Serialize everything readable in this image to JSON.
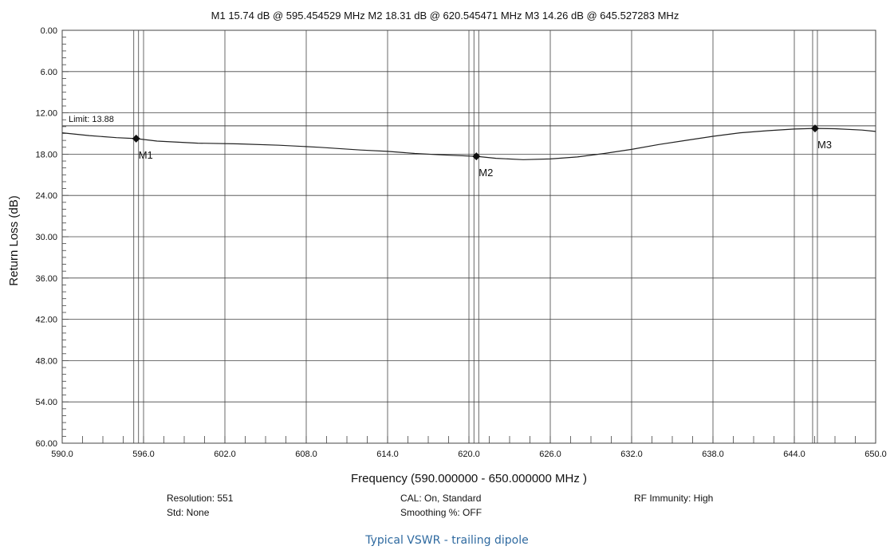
{
  "header": {
    "markers_line": "M1  15.74 dB @ 595.454529 MHz     M2  18.31 dB @ 620.545471 MHz   M3  14.26 dB @ 645.527283 MHz"
  },
  "chart_data": {
    "type": "line",
    "xlabel": "Frequency (590.000000 - 650.000000 MHz )",
    "ylabel": "Return Loss (dB)",
    "xlim": [
      590,
      650
    ],
    "ylim": [
      0,
      60
    ],
    "y_inverted": true,
    "grid": true,
    "x_ticks": [
      "590.0",
      "596.0",
      "602.0",
      "608.0",
      "614.0",
      "620.0",
      "626.0",
      "632.0",
      "638.0",
      "644.0",
      "650.0"
    ],
    "x_tick_values": [
      590,
      596,
      602,
      608,
      614,
      620,
      626,
      632,
      638,
      644,
      650
    ],
    "y_ticks": [
      "0.00",
      "6.00",
      "12.00",
      "18.00",
      "24.00",
      "30.00",
      "36.00",
      "42.00",
      "48.00",
      "54.00",
      "60.00"
    ],
    "y_tick_values": [
      0,
      6,
      12,
      18,
      24,
      30,
      36,
      42,
      48,
      54,
      60
    ],
    "limit_line": {
      "label": "Limit: 13.88",
      "value": 13.88
    },
    "series": [
      {
        "x": [
          590,
          592,
          594,
          595.45,
          597,
          600,
          603,
          606,
          609,
          612,
          614,
          616,
          618,
          620.55,
          622,
          624,
          626,
          628,
          630,
          632,
          634,
          636,
          638,
          640,
          642,
          644,
          645.53,
          647,
          649,
          650
        ],
        "y": [
          14.9,
          15.3,
          15.6,
          15.74,
          16.1,
          16.4,
          16.5,
          16.7,
          17.0,
          17.4,
          17.6,
          17.9,
          18.1,
          18.31,
          18.6,
          18.8,
          18.7,
          18.4,
          17.9,
          17.3,
          16.6,
          16.0,
          15.4,
          14.9,
          14.6,
          14.35,
          14.26,
          14.3,
          14.5,
          14.7
        ]
      }
    ],
    "markers": [
      {
        "label": "M1",
        "x": 595.454529,
        "y": 15.74
      },
      {
        "label": "M2",
        "x": 620.545471,
        "y": 18.31
      },
      {
        "label": "M3",
        "x": 645.527283,
        "y": 14.26
      }
    ]
  },
  "footer": {
    "resolution": "Resolution: 551",
    "std": "Std: None",
    "cal": "CAL: On, Standard",
    "smoothing": "Smoothing %:  OFF",
    "rf_immunity": "RF Immunity: High"
  },
  "caption": "Typical VSWR - trailing dipole",
  "colors": {
    "caption": "#2f6aa0",
    "grid": "#444444",
    "trace": "#222222"
  }
}
